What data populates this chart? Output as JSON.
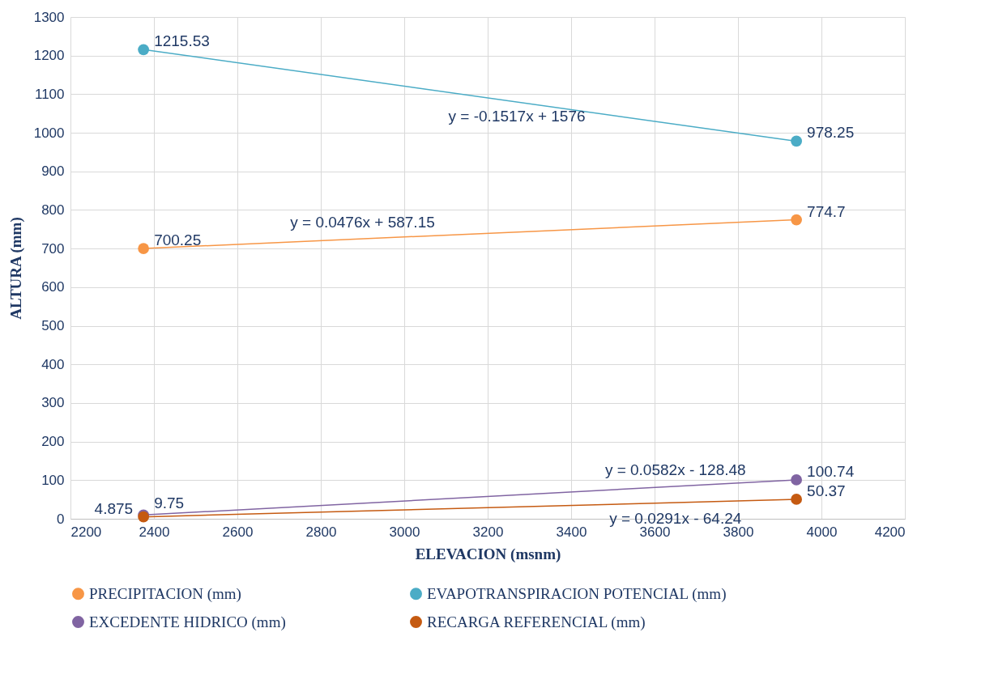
{
  "chart_data": {
    "type": "line",
    "xlabel": "ELEVACION (msnm)",
    "ylabel": "ALTURA (mm)",
    "x": [
      2375,
      3940
    ],
    "series": [
      {
        "name": "PRECIPITACION (mm)",
        "color": "#f79646",
        "values": [
          700.25,
          774.7
        ]
      },
      {
        "name": "EVAPOTRANSPIRACION POTENCIAL (mm)",
        "color": "#4bacc6",
        "values": [
          1215.53,
          978.25
        ]
      },
      {
        "name": "EXCEDENTE HIDRICO (mm)",
        "color": "#8064a2",
        "values": [
          9.75,
          100.74
        ]
      },
      {
        "name": "RECARGA REFERENCIAL (mm)",
        "color": "#c55a11",
        "values": [
          4.875,
          50.37
        ]
      }
    ],
    "xlim": [
      2200,
      4200
    ],
    "xticks": [
      2200,
      2400,
      2600,
      2800,
      3000,
      3200,
      3400,
      3600,
      3800,
      4000,
      4200
    ],
    "ylim": [
      0,
      1300
    ],
    "yticks": [
      0,
      100,
      200,
      300,
      400,
      500,
      600,
      700,
      800,
      900,
      1000,
      1100,
      1200,
      1300
    ],
    "data_labels": true,
    "grid": true,
    "legend": "bottom",
    "marker": "circle",
    "line_style": "solid",
    "annotations": [
      {
        "text": "y = -0.1517x + 1576",
        "x": 3270,
        "y": 1080
      },
      {
        "text": "y = 0.0476x + 587.15",
        "x": 2900,
        "y": 725
      },
      {
        "text": "y = 0.0582x - 128.48",
        "x": 3650,
        "y": 84
      },
      {
        "text": "y = 0.0291x - 64.24",
        "x": 3650,
        "y": 42
      }
    ]
  }
}
